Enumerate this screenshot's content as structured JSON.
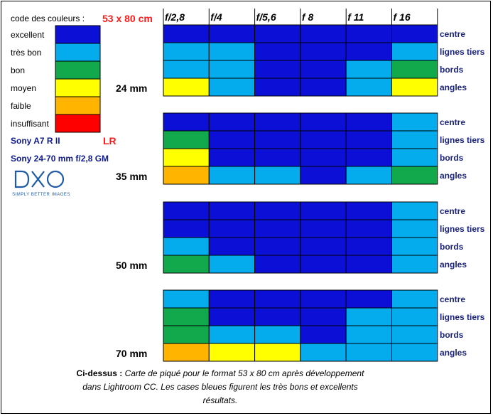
{
  "legend": {
    "title": "code des couleurs :",
    "size_label": "53 x 80 cm",
    "items": [
      {
        "label": "excellent",
        "color": "#0c10d6"
      },
      {
        "label": "très bon",
        "color": "#05aced"
      },
      {
        "label": "bon",
        "color": "#12a84c"
      },
      {
        "label": "moyen",
        "color": "#ffff00"
      },
      {
        "label": "faible",
        "color": "#ffb400"
      },
      {
        "label": "insuffisant",
        "color": "#ff0000"
      }
    ]
  },
  "camera": "Sony A7 R II",
  "software": "LR",
  "lens": "Sony 24-70 mm f/2,8 GM",
  "logo": {
    "name": "DXO",
    "tagline": "SIMPLY BETTER IMAGES"
  },
  "caption": {
    "bold": "Ci-dessus :",
    "text": "Carte de piqué pour le format 53 x 80 cm après développement dans Lightroom CC. Les cases bleues figurent les très bons et excellents résultats."
  },
  "chart_data": {
    "type": "heatmap",
    "columns": [
      "f/2,8",
      "f/4",
      "f/5,6",
      "f 8",
      "f 11",
      "f 16"
    ],
    "rows": [
      "centre",
      "lignes tiers",
      "bords",
      "angles"
    ],
    "scale": [
      "excellent",
      "très bon",
      "bon",
      "moyen",
      "faible",
      "insuffisant"
    ],
    "groups": [
      {
        "focal": "24 mm",
        "cells": [
          [
            "excellent",
            "excellent",
            "excellent",
            "excellent",
            "excellent",
            "excellent"
          ],
          [
            "très bon",
            "très bon",
            "excellent",
            "excellent",
            "excellent",
            "très bon"
          ],
          [
            "très bon",
            "très bon",
            "excellent",
            "excellent",
            "très bon",
            "bon"
          ],
          [
            "moyen",
            "très bon",
            "excellent",
            "excellent",
            "très bon",
            "moyen"
          ]
        ]
      },
      {
        "focal": "35 mm",
        "cells": [
          [
            "excellent",
            "excellent",
            "excellent",
            "excellent",
            "excellent",
            "très bon"
          ],
          [
            "bon",
            "excellent",
            "excellent",
            "excellent",
            "excellent",
            "très bon"
          ],
          [
            "moyen",
            "excellent",
            "excellent",
            "excellent",
            "excellent",
            "très bon"
          ],
          [
            "faible",
            "très bon",
            "très bon",
            "excellent",
            "très bon",
            "bon"
          ]
        ]
      },
      {
        "focal": "50 mm",
        "cells": [
          [
            "excellent",
            "excellent",
            "excellent",
            "excellent",
            "excellent",
            "très bon"
          ],
          [
            "excellent",
            "excellent",
            "excellent",
            "excellent",
            "excellent",
            "très bon"
          ],
          [
            "très bon",
            "excellent",
            "excellent",
            "excellent",
            "excellent",
            "très bon"
          ],
          [
            "bon",
            "très bon",
            "excellent",
            "excellent",
            "excellent",
            "très bon"
          ]
        ]
      },
      {
        "focal": "70 mm",
        "cells": [
          [
            "très bon",
            "excellent",
            "excellent",
            "excellent",
            "excellent",
            "très bon"
          ],
          [
            "bon",
            "excellent",
            "excellent",
            "excellent",
            "très bon",
            "très bon"
          ],
          [
            "bon",
            "très bon",
            "très bon",
            "excellent",
            "très bon",
            "très bon"
          ],
          [
            "faible",
            "moyen",
            "moyen",
            "très bon",
            "très bon",
            "très bon"
          ]
        ]
      }
    ]
  }
}
